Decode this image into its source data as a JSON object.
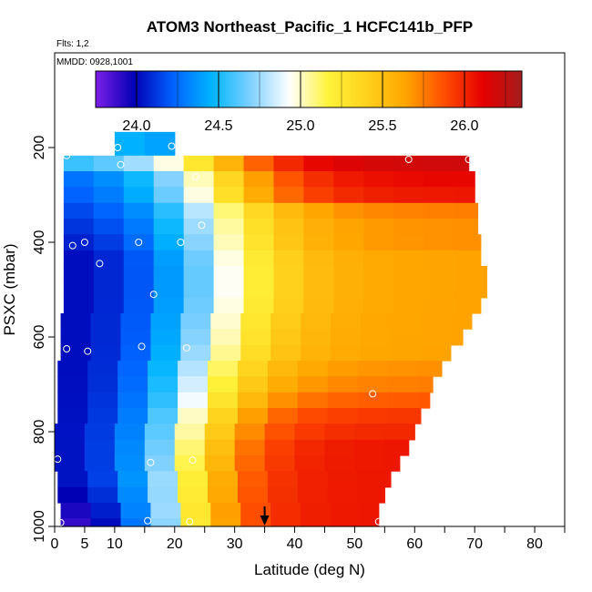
{
  "chart_data": {
    "type": "heatmap",
    "title": "ATOM3 Northeast_Pacific_1 HCFC141b_PFP",
    "flights_label": "Flts: 1,2",
    "dates_label": "MMDD: 0928,1001",
    "xlabel": "Latitude (deg N)",
    "ylabel": "PSXC (mbar)",
    "xlim": [
      0,
      85
    ],
    "ylim": [
      1000,
      0
    ],
    "x_ticks": [
      0,
      5,
      10,
      20,
      30,
      40,
      50,
      60,
      70,
      80
    ],
    "x_ticks_unlabeled": [
      15,
      25,
      35,
      45,
      55,
      65,
      75,
      85
    ],
    "y_ticks": [
      200,
      400,
      600,
      800,
      1000
    ],
    "colorbar": {
      "range": [
        23.75,
        26.35
      ],
      "ticks": [
        24.0,
        24.5,
        25.0,
        25.5,
        26.0
      ],
      "tick_labels": [
        "24.0",
        "24.5",
        "25.0",
        "25.5",
        "26.0"
      ],
      "colors": [
        "#7e1fe6",
        "#0000b5",
        "#0062ff",
        "#00b5ff",
        "#7fd0ff",
        "#ffffff",
        "#fff33b",
        "#ffd11c",
        "#ffa500",
        "#ff4d00",
        "#e60000",
        "#a51d1d"
      ]
    },
    "rows": [
      {
        "p_top": 167,
        "p_bot": 217,
        "lat_min": 10,
        "lat_max": 20,
        "v_start": 24.45,
        "v_end": 24.4
      },
      {
        "p_top": 217,
        "p_bot": 250,
        "lat_min": 1.5,
        "lat_max": 69,
        "v_start": 24.5,
        "v_end": 26.2
      },
      {
        "p_top": 250,
        "p_bot": 283,
        "lat_min": 1.5,
        "lat_max": 70,
        "v_start": 24.2,
        "v_end": 26.1
      },
      {
        "p_top": 283,
        "p_bot": 317,
        "lat_min": 1.5,
        "lat_max": 70,
        "v_start": 24.15,
        "v_end": 26.05
      },
      {
        "p_top": 317,
        "p_bot": 350,
        "lat_min": 1.5,
        "lat_max": 70.5,
        "v_start": 24.1,
        "v_end": 25.75
      },
      {
        "p_top": 350,
        "p_bot": 383,
        "lat_min": 1.5,
        "lat_max": 70.5,
        "v_start": 24.05,
        "v_end": 25.7
      },
      {
        "p_top": 383,
        "p_bot": 417,
        "lat_min": 1.5,
        "lat_max": 71,
        "v_start": 24.0,
        "v_end": 25.7
      },
      {
        "p_top": 417,
        "p_bot": 450,
        "lat_min": 1.5,
        "lat_max": 71,
        "v_start": 23.95,
        "v_end": 25.65
      },
      {
        "p_top": 450,
        "p_bot": 483,
        "lat_min": 1.5,
        "lat_max": 72,
        "v_start": 23.95,
        "v_end": 25.65
      },
      {
        "p_top": 483,
        "p_bot": 517,
        "lat_min": 1.5,
        "lat_max": 72,
        "v_start": 23.95,
        "v_end": 25.65
      },
      {
        "p_top": 517,
        "p_bot": 550,
        "lat_min": 1.5,
        "lat_max": 71,
        "v_start": 23.95,
        "v_end": 25.65
      },
      {
        "p_top": 550,
        "p_bot": 583,
        "lat_min": 1,
        "lat_max": 69.5,
        "v_start": 23.95,
        "v_end": 25.65
      },
      {
        "p_top": 583,
        "p_bot": 617,
        "lat_min": 1,
        "lat_max": 68,
        "v_start": 23.95,
        "v_end": 25.65
      },
      {
        "p_top": 617,
        "p_bot": 650,
        "lat_min": 1,
        "lat_max": 66,
        "v_start": 23.95,
        "v_end": 25.65
      },
      {
        "p_top": 650,
        "p_bot": 683,
        "lat_min": 0.5,
        "lat_max": 64.5,
        "v_start": 23.95,
        "v_end": 25.7
      },
      {
        "p_top": 683,
        "p_bot": 717,
        "lat_min": 0.5,
        "lat_max": 63,
        "v_start": 23.95,
        "v_end": 25.75
      },
      {
        "p_top": 717,
        "p_bot": 750,
        "lat_min": 0.5,
        "lat_max": 62.5,
        "v_start": 23.95,
        "v_end": 25.85
      },
      {
        "p_top": 750,
        "p_bot": 783,
        "lat_min": 0.5,
        "lat_max": 61,
        "v_start": 23.95,
        "v_end": 25.95
      },
      {
        "p_top": 783,
        "p_bot": 817,
        "lat_min": 0,
        "lat_max": 60,
        "v_start": 23.95,
        "v_end": 26.0
      },
      {
        "p_top": 817,
        "p_bot": 850,
        "lat_min": 0,
        "lat_max": 59,
        "v_start": 23.95,
        "v_end": 26.05
      },
      {
        "p_top": 850,
        "p_bot": 883,
        "lat_min": 0,
        "lat_max": 57.5,
        "v_start": 23.95,
        "v_end": 26.05
      },
      {
        "p_top": 883,
        "p_bot": 917,
        "lat_min": 0.5,
        "lat_max": 56,
        "v_start": 23.95,
        "v_end": 26.05
      },
      {
        "p_top": 917,
        "p_bot": 950,
        "lat_min": 0.5,
        "lat_max": 55,
        "v_start": 23.9,
        "v_end": 26.05
      },
      {
        "p_top": 950,
        "p_bot": 983,
        "lat_min": 1,
        "lat_max": 54,
        "v_start": 23.85,
        "v_end": 26.05
      },
      {
        "p_top": 983,
        "p_bot": 1000,
        "lat_min": 1,
        "lat_max": 54,
        "v_start": 23.8,
        "v_end": 26.05
      }
    ],
    "sample_points": [
      {
        "lat": 2,
        "p": 217
      },
      {
        "lat": 10.5,
        "p": 200
      },
      {
        "lat": 19.5,
        "p": 197
      },
      {
        "lat": 11,
        "p": 236
      },
      {
        "lat": 23.5,
        "p": 262
      },
      {
        "lat": 59,
        "p": 225
      },
      {
        "lat": 69,
        "p": 225
      },
      {
        "lat": 24.5,
        "p": 364
      },
      {
        "lat": 3,
        "p": 407
      },
      {
        "lat": 5,
        "p": 400
      },
      {
        "lat": 14,
        "p": 400
      },
      {
        "lat": 21,
        "p": 400
      },
      {
        "lat": 7.5,
        "p": 445
      },
      {
        "lat": 16.5,
        "p": 510
      },
      {
        "lat": 2,
        "p": 625
      },
      {
        "lat": 5.5,
        "p": 630
      },
      {
        "lat": 14.5,
        "p": 620
      },
      {
        "lat": 22,
        "p": 623
      },
      {
        "lat": 53,
        "p": 720
      },
      {
        "lat": 0.5,
        "p": 858
      },
      {
        "lat": 16,
        "p": 865
      },
      {
        "lat": 23,
        "p": 860
      },
      {
        "lat": 1,
        "p": 992
      },
      {
        "lat": 15.5,
        "p": 988
      },
      {
        "lat": 22.5,
        "p": 990
      },
      {
        "lat": 54,
        "p": 990
      }
    ],
    "marker_latitude": 35
  }
}
